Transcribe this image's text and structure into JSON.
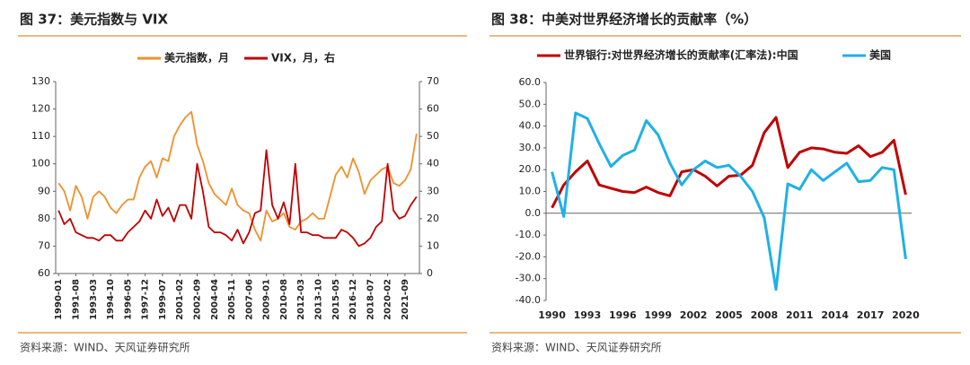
{
  "chart_data": [
    {
      "type": "line",
      "title": "图 37：美元指数与 VIX",
      "source": "资料来源：WIND、天风证券研究所",
      "categories": [
        "1990-01",
        null,
        null,
        "1991-08",
        null,
        null,
        "1993-03",
        null,
        null,
        "1994-10",
        null,
        null,
        "1996-05",
        null,
        null,
        "1997-12",
        null,
        null,
        "1999-07",
        null,
        null,
        "2001-02",
        null,
        null,
        "2002-09",
        null,
        null,
        "2004-04",
        null,
        null,
        "2005-11",
        null,
        null,
        "2007-06",
        null,
        null,
        "2009-01",
        null,
        null,
        "2010-08",
        null,
        null,
        "2012-03",
        null,
        null,
        "2013-10",
        null,
        null,
        "2015-05",
        null,
        null,
        "2016-12",
        null,
        null,
        "2018-07",
        null,
        null,
        "2020-02",
        null,
        null,
        "2021-09",
        null,
        null
      ],
      "series": [
        {
          "name": "美元指数，月",
          "color": "#f0902c",
          "values": [
            93,
            90,
            83,
            92,
            88,
            80,
            88,
            90,
            88,
            84,
            82,
            85,
            87,
            87,
            95,
            99,
            101,
            95,
            102,
            101,
            110,
            114,
            117,
            119,
            107,
            101,
            93,
            89,
            87,
            85,
            91,
            85,
            83,
            82,
            76,
            72,
            83,
            79,
            80,
            82,
            77,
            76,
            79,
            80,
            82,
            80,
            80,
            88,
            96,
            99,
            95,
            102,
            97,
            89,
            94,
            96,
            98,
            99,
            93,
            92,
            94,
            98,
            111
          ]
        },
        {
          "name": "VIX，月，右",
          "color": "#c00000",
          "axis": "y2",
          "values": [
            23,
            18,
            20,
            15,
            14,
            13,
            13,
            12,
            14,
            14,
            12,
            12,
            15,
            17,
            19,
            23,
            20,
            27,
            21,
            24,
            19,
            25,
            25,
            20,
            40,
            30,
            17,
            15,
            15,
            14,
            12,
            16,
            11,
            15,
            22,
            23,
            45,
            25,
            20,
            26,
            18,
            40,
            15,
            15,
            14,
            14,
            13,
            13,
            13,
            16,
            15,
            13,
            10,
            11,
            13,
            17,
            19,
            40,
            23,
            20,
            21,
            25,
            28
          ]
        }
      ],
      "ylim": [
        60,
        130
      ],
      "yticks": [
        60,
        70,
        80,
        90,
        100,
        110,
        120,
        130
      ],
      "y2lim": [
        0,
        70
      ],
      "y2ticks": [
        0,
        10,
        20,
        30,
        40,
        50,
        60,
        70
      ]
    },
    {
      "type": "line",
      "title": "图 38：中美对世界经济增长的贡献率（%）",
      "source": "资料来源：WIND、天风证券研究所",
      "categories": [
        "1990",
        null,
        null,
        "1993",
        null,
        null,
        "1996",
        null,
        null,
        "1999",
        null,
        null,
        "2002",
        null,
        null,
        "2005",
        null,
        null,
        "2008",
        null,
        null,
        "2011",
        null,
        null,
        "2014",
        null,
        null,
        "2017",
        null,
        null,
        "2020"
      ],
      "series": [
        {
          "name": "世界银行:对世界经济增长的贡献率(汇率法):中国",
          "color": "#c00000",
          "values": [
            2.5,
            13,
            19,
            24,
            13,
            11.5,
            10,
            9.5,
            12,
            9.5,
            8,
            19,
            20,
            17,
            12.5,
            17,
            17.5,
            22,
            37,
            44,
            21,
            28,
            30,
            29.5,
            28,
            27.5,
            31,
            26,
            28,
            33.5,
            8.5
          ]
        },
        {
          "name": "美国",
          "color": "#1fb0e6",
          "values": [
            19,
            -1.5,
            46,
            43.5,
            32,
            21.5,
            26.5,
            29,
            42.5,
            36,
            23,
            13,
            20,
            24,
            21,
            22,
            17,
            10,
            -2,
            -35,
            13.5,
            11,
            20,
            15,
            19,
            23,
            14.5,
            15,
            21,
            20,
            -21
          ]
        }
      ],
      "ylim": [
        -40,
        60
      ],
      "yticks": [
        {
          "value": -40,
          "label": "-40.0"
        },
        {
          "value": -30,
          "label": "-30.0"
        },
        {
          "value": -20,
          "label": "-20.0"
        },
        {
          "value": -10,
          "label": "-10.0"
        },
        {
          "value": 0,
          "label": "0.0"
        },
        {
          "value": 10,
          "label": "10.0"
        },
        {
          "value": 20,
          "label": "20.0"
        },
        {
          "value": 30,
          "label": "30.0"
        },
        {
          "value": 40,
          "label": "40.0"
        },
        {
          "value": 50,
          "label": "50.0"
        },
        {
          "value": 60,
          "label": "60.0"
        }
      ]
    }
  ]
}
